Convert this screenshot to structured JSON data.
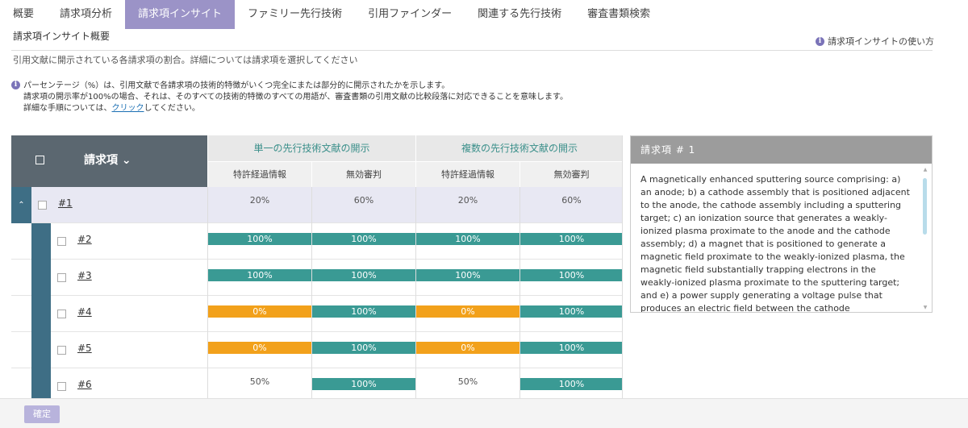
{
  "tabs": [
    {
      "label": "概要"
    },
    {
      "label": "請求項分析"
    },
    {
      "label": "請求項インサイト"
    },
    {
      "label": "ファミリー先行技術"
    },
    {
      "label": "引用ファインダー"
    },
    {
      "label": "関連する先行技術"
    },
    {
      "label": "審査書類検索"
    }
  ],
  "overview": {
    "title": "請求項インサイト概要",
    "help_link": "請求項インサイトの使い方",
    "subtitle": "引用文献に開示されている各請求項の割合。詳細については請求項を選択してください"
  },
  "note": {
    "line1": "パーセンテージ（%）は、引用文献で各請求項の技術的特徴がいくつ完全にまたは部分的に開示されたかを示します。",
    "line2": "請求項の開示率が100%の場合、それは、そのすべての技術的特徴のすべての用語が、審査書類の引用文献の比較段落に対応できることを意味します。",
    "line3_prefix": "詳細な手順については、",
    "line3_link": "クリック",
    "line3_suffix": "してください。"
  },
  "table": {
    "claim_header": "請求項",
    "group_single": "単一の先行技術文献の開示",
    "group_multi": "複数の先行技術文献の開示",
    "sub1": "特許経過情報",
    "sub2": "無効審判",
    "sub3": "特許経過情報",
    "sub4": "無効審判",
    "rows": [
      {
        "label": "#1",
        "v": [
          "20%",
          "60%",
          "20%",
          "60%"
        ],
        "style": [
          "text",
          "text",
          "text",
          "text"
        ]
      },
      {
        "label": "#2",
        "v": [
          "100%",
          "100%",
          "100%",
          "100%"
        ],
        "style": [
          "green",
          "green",
          "green",
          "green"
        ]
      },
      {
        "label": "#3",
        "v": [
          "100%",
          "100%",
          "100%",
          "100%"
        ],
        "style": [
          "green",
          "green",
          "green",
          "green"
        ]
      },
      {
        "label": "#4",
        "v": [
          "0%",
          "100%",
          "0%",
          "100%"
        ],
        "style": [
          "orange",
          "green",
          "orange",
          "green"
        ]
      },
      {
        "label": "#5",
        "v": [
          "0%",
          "100%",
          "0%",
          "100%"
        ],
        "style": [
          "orange",
          "green",
          "orange",
          "green"
        ]
      },
      {
        "label": "#6",
        "v": [
          "50%",
          "100%",
          "50%",
          "100%"
        ],
        "style": [
          "text",
          "green",
          "text",
          "green"
        ]
      }
    ]
  },
  "panel": {
    "title": "請求項 # 1",
    "body": "A magnetically enhanced sputtering source comprising: a) an anode; b) a cathode assembly that is positioned adjacent to the anode, the cathode assembly including a sputtering target; c) an ionization source that generates a weakly-ionized plasma proximate to the anode and the cathode assembly; d) a magnet that is positioned to generate a magnetic field proximate to the weakly-ionized plasma, the magnetic field substantially trapping electrons in the weakly-ionized plasma proximate to the sputtering target; and e) a power supply generating a voltage pulse that produces an electric field between the cathode"
  },
  "footer": {
    "confirm_label": "確定"
  },
  "colors": {
    "accent": "#9b93c7",
    "green": "#3a9a94",
    "orange": "#f2a11b",
    "side": "#3e6e85"
  }
}
